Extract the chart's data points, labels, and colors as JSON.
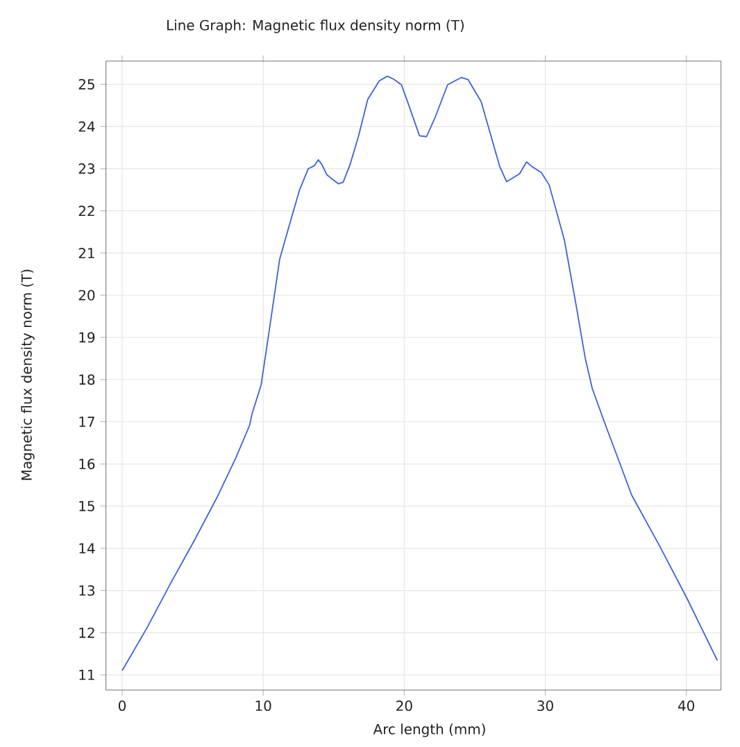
{
  "chart_data": {
    "type": "line",
    "title": "Line Graph: Magnetic flux density norm (T)",
    "xlabel": "Arc length (mm)",
    "ylabel": "Magnetic flux density norm (T)",
    "xlim": [
      -1.15,
      42.46
    ],
    "ylim": [
      10.64,
      25.55
    ],
    "xticks": [
      0,
      10,
      20,
      30,
      40
    ],
    "yticks": [
      11,
      12,
      13,
      14,
      15,
      16,
      17,
      18,
      19,
      20,
      21,
      22,
      23,
      24,
      25
    ],
    "grid": true,
    "series": [
      {
        "color": "#3f5fdc",
        "x": [
          0,
          1.8,
          3.45,
          5.09,
          6.73,
          8.05,
          9.03,
          9.2,
          9.85,
          10.4,
          11.17,
          11.82,
          12.58,
          13.2,
          13.63,
          13.9,
          14.16,
          14.5,
          14.94,
          15.34,
          15.67,
          16.16,
          16.75,
          17.41,
          18.23,
          18.79,
          19.21,
          19.8,
          20.36,
          21.08,
          21.58,
          22.17,
          23.08,
          24.04,
          24.53,
          25.45,
          26.11,
          26.77,
          27.26,
          28.18,
          28.67,
          29.06,
          29.72,
          30.28,
          31.36,
          32.19,
          32.84,
          33.33,
          34.16,
          36.13,
          38.1,
          40.07,
          42.2
        ],
        "values": [
          11.1,
          12.14,
          13.18,
          14.17,
          15.21,
          16.14,
          16.91,
          17.18,
          17.87,
          19.1,
          20.86,
          21.62,
          22.5,
          23.0,
          23.07,
          23.21,
          23.1,
          22.86,
          22.74,
          22.64,
          22.68,
          23.1,
          23.76,
          24.64,
          25.08,
          25.19,
          25.13,
          24.99,
          24.47,
          23.78,
          23.76,
          24.2,
          24.99,
          25.16,
          25.11,
          24.59,
          23.82,
          23.05,
          22.69,
          22.88,
          23.16,
          23.05,
          22.91,
          22.61,
          21.3,
          19.76,
          18.5,
          17.79,
          17.02,
          15.26,
          14.06,
          12.8,
          11.34
        ]
      }
    ]
  }
}
